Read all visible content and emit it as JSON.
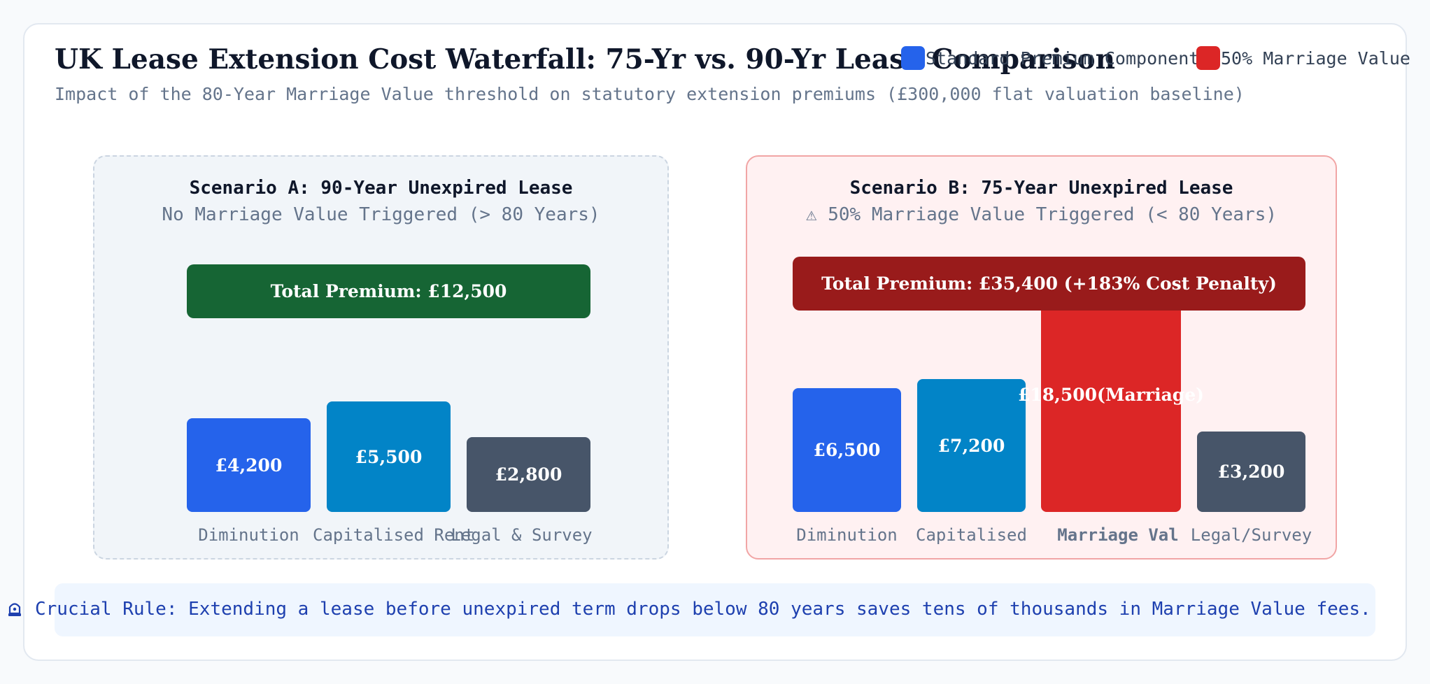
{
  "chart_data": {
    "type": "bar",
    "title": "UK Lease Extension Cost Waterfall: 75-Yr vs. 90-Yr Lease Comparison",
    "subtitle": "Impact of the 80-Year Marriage Value threshold on statutory extension premiums (£300,000 flat valuation baseline)",
    "legend": [
      {
        "label": "Standard Premium Components",
        "color": "#2563eb"
      },
      {
        "label": "50% Marriage Value",
        "color": "#dc2626"
      }
    ],
    "panels": [
      {
        "title": "Scenario A: 90-Year Unexpired Lease",
        "subtitle": "No Marriage Value Triggered (> 80 Years)",
        "total_label": "Total Premium: £12,500",
        "total_value": 12500,
        "total_color": "#166534",
        "categories": [
          "Diminution",
          "Capitalised Rent",
          "Legal & Survey"
        ],
        "values": [
          4200,
          5500,
          2800
        ],
        "value_labels": [
          "£4,200",
          "£5,500",
          "£2,800"
        ],
        "colors": [
          "#2563eb",
          "#0284c7",
          "#475569"
        ]
      },
      {
        "title": "Scenario B: 75-Year Unexpired Lease",
        "subtitle": "50% Marriage Value Triggered (< 80 Years)",
        "warning_icon": "⚠",
        "total_label": "Total Premium: £35,400 (+183% Cost Penalty)",
        "total_value": 35400,
        "total_color": "#991b1b",
        "categories": [
          "Diminution",
          "Capitalised",
          "Marriage Val",
          "Legal/Survey"
        ],
        "values": [
          6500,
          7200,
          18500,
          3200
        ],
        "value_labels": [
          "£6,500",
          "£7,200",
          "£18,500(Marriage)",
          "£3,200"
        ],
        "colors": [
          "#2563eb",
          "#0284c7",
          "#dc2626",
          "#475569"
        ]
      }
    ]
  },
  "footer": {
    "icon": "siren-icon",
    "text": "Crucial Rule: Extending a lease before unexpired term drops below 80 years saves tens of thousands in Marriage Value fees."
  }
}
